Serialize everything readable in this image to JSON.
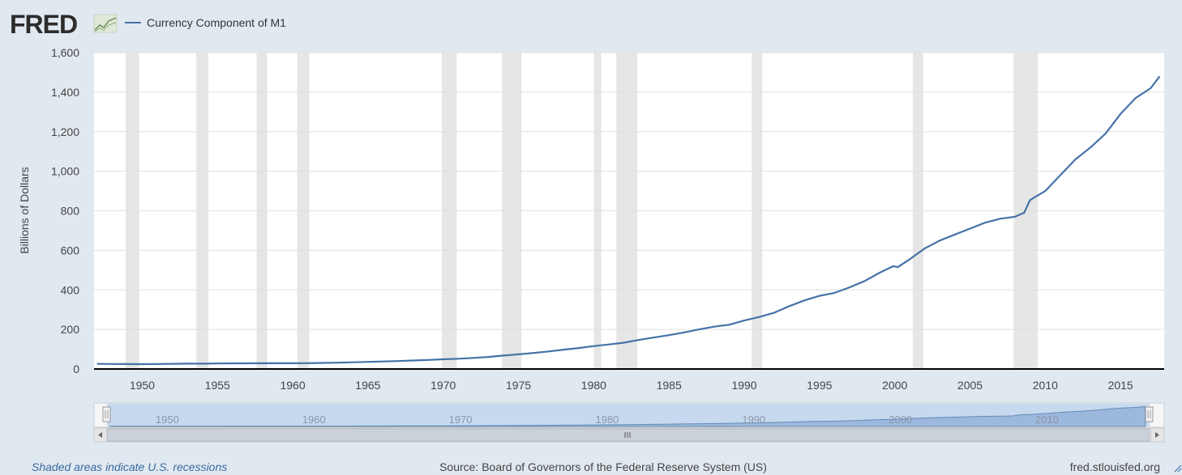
{
  "logo": {
    "text": "FRED",
    "icon": "chart-line-icon"
  },
  "legend": {
    "series_name": "Currency Component of M1",
    "color": "#4572a7"
  },
  "footer": {
    "note": "Shaded areas indicate U.S. recessions",
    "source": "Source: Board of Governors of the Federal Reserve System (US)",
    "site": "fred.stlouisfed.org"
  },
  "colors": {
    "background": "#e1e9f0",
    "plot_background": "#ffffff",
    "recession": "#e6e6e6",
    "series": "#4572a7",
    "navigator_fill": "#bdd3ec"
  },
  "chart_data": {
    "type": "line",
    "title": "",
    "xlabel": "",
    "ylabel": "Billions of Dollars",
    "xlim": [
      1946.8,
      2017.9
    ],
    "ylim": [
      0,
      1600
    ],
    "grid": true,
    "legend_position": "top-left",
    "y_ticks": [
      0,
      200,
      400,
      600,
      800,
      1000,
      1200,
      1400,
      1600
    ],
    "y_tick_labels": [
      "0",
      "200",
      "400",
      "600",
      "800",
      "1,000",
      "1,200",
      "1,400",
      "1,600"
    ],
    "x_ticks": [
      1950,
      1955,
      1960,
      1965,
      1970,
      1975,
      1980,
      1985,
      1990,
      1995,
      2000,
      2005,
      2010,
      2015
    ],
    "x_tick_labels": [
      "1950",
      "1955",
      "1960",
      "1965",
      "1970",
      "1975",
      "1980",
      "1985",
      "1990",
      "1995",
      "2000",
      "2005",
      "2010",
      "2015"
    ],
    "recessions": [
      [
        1948.9,
        1949.8
      ],
      [
        1953.6,
        1954.4
      ],
      [
        1957.6,
        1958.3
      ],
      [
        1960.3,
        1961.1
      ],
      [
        1969.9,
        1970.9
      ],
      [
        1973.9,
        1975.2
      ],
      [
        1980.0,
        1980.5
      ],
      [
        1981.5,
        1982.9
      ],
      [
        1990.5,
        1991.2
      ],
      [
        2001.2,
        2001.9
      ],
      [
        2007.9,
        2009.5
      ]
    ],
    "series": [
      {
        "name": "Currency Component of M1",
        "x": [
          1947,
          1948,
          1949,
          1950,
          1951,
          1952,
          1953,
          1954,
          1955,
          1956,
          1957,
          1958,
          1959,
          1960,
          1961,
          1962,
          1963,
          1964,
          1965,
          1966,
          1967,
          1968,
          1969,
          1970,
          1971,
          1972,
          1973,
          1974,
          1975,
          1976,
          1977,
          1978,
          1979,
          1980,
          1981,
          1982,
          1983,
          1984,
          1985,
          1986,
          1987,
          1988,
          1989,
          1990,
          1991,
          1992,
          1993,
          1994,
          1995,
          1996,
          1997,
          1998,
          1999,
          1999.9,
          2000.2,
          2001,
          2002,
          2003,
          2004,
          2005,
          2006,
          2007,
          2008,
          2008.6,
          2008.9,
          2009,
          2010,
          2011,
          2012,
          2013,
          2014,
          2015,
          2016,
          2017,
          2017.6
        ],
        "values": [
          26,
          25.5,
          25,
          24.5,
          25,
          26,
          27,
          27,
          28,
          28.5,
          28.5,
          29,
          29,
          29,
          29.5,
          30.5,
          32,
          34,
          36,
          38,
          40,
          43,
          46,
          49,
          52,
          56,
          61,
          68,
          74,
          81,
          89,
          98,
          106,
          116,
          124,
          133,
          147,
          159,
          171,
          185,
          200,
          214,
          224,
          245,
          263,
          285,
          318,
          347,
          370,
          385,
          413,
          445,
          487,
          520,
          515,
          555,
          610,
          650,
          680,
          710,
          740,
          760,
          770,
          790,
          840,
          855,
          900,
          980,
          1060,
          1120,
          1190,
          1290,
          1370,
          1420,
          1480
        ]
      }
    ],
    "navigator": {
      "tick_labels": [
        "1950",
        "1960",
        "1970",
        "1980",
        "1990",
        "2000",
        "2010"
      ],
      "tick_values": [
        1950,
        1960,
        1970,
        1980,
        1990,
        2000,
        2010
      ]
    }
  }
}
